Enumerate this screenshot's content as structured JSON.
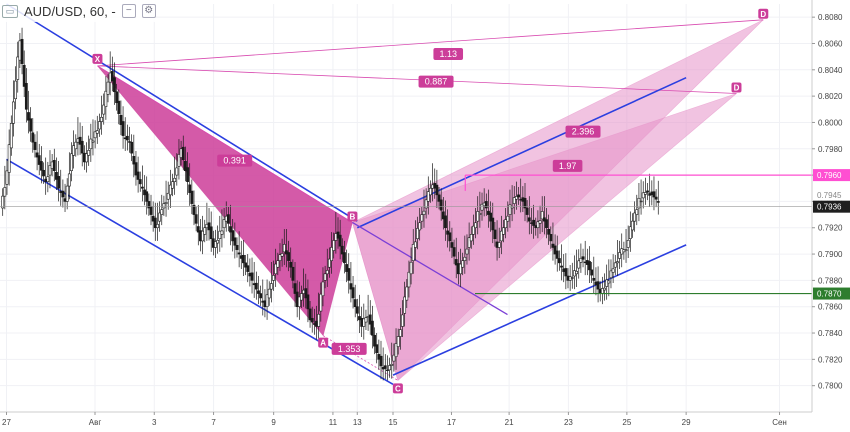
{
  "header": {
    "symbol_label": "AUD/USD, 60, -",
    "chart_icon": "chart-window-icon",
    "toggle_icons": [
      "minimize-square-icon",
      "settings-square-icon"
    ]
  },
  "colors": {
    "pattern_fill": "#cc3d99",
    "pattern_light": "#e691c8",
    "trend_line": "#2b3fe0",
    "fib_line": "#d84bb0",
    "level_pink": "#ff4fd2",
    "level_green": "#2e7d2e",
    "current_price_bg": "#1f1f1f",
    "candle": "#1a1a1a"
  },
  "chart_data": {
    "type": "candlestick",
    "symbol": "AUD/USD",
    "interval": "60",
    "ylim": [
      0.778,
      0.809
    ],
    "y_ticks": [
      "0.8080",
      "0.8060",
      "0.8040",
      "0.8020",
      "0.8000",
      "0.7980",
      "0.7960",
      "0.7940",
      "0.7920",
      "0.7900",
      "0.7880",
      "0.7860",
      "0.7840",
      "0.7820",
      "0.7800"
    ],
    "x_ticks": [
      "27",
      "Авг",
      "3",
      "7",
      "9",
      "11",
      "13",
      "15",
      "17",
      "21",
      "23",
      "25",
      "29",
      "Сен"
    ],
    "price_tags": [
      {
        "label": "0.7960",
        "style": "pink"
      },
      {
        "label": "0.7945",
        "style": "faint"
      },
      {
        "label": "0.7936",
        "style": "current"
      },
      {
        "label": "0.7870",
        "style": "green"
      }
    ],
    "price_path": [
      [
        0,
        0.7935
      ],
      [
        1,
        0.7962
      ],
      [
        2,
        0.8018
      ],
      [
        3,
        0.8062
      ],
      [
        4,
        0.801
      ],
      [
        5,
        0.7985
      ],
      [
        6,
        0.7968
      ],
      [
        7,
        0.7955
      ],
      [
        8,
        0.797
      ],
      [
        9,
        0.795
      ],
      [
        10,
        0.794
      ],
      [
        11,
        0.7975
      ],
      [
        12,
        0.799
      ],
      [
        13,
        0.797
      ],
      [
        14,
        0.7985
      ],
      [
        15,
        0.7995
      ],
      [
        16,
        0.8012
      ],
      [
        17,
        0.804
      ],
      [
        18,
        0.8015
      ],
      [
        19,
        0.799
      ],
      [
        20,
        0.7985
      ],
      [
        21,
        0.796
      ],
      [
        22,
        0.795
      ],
      [
        23,
        0.7935
      ],
      [
        24,
        0.792
      ],
      [
        25,
        0.7935
      ],
      [
        26,
        0.7945
      ],
      [
        27,
        0.796
      ],
      [
        28,
        0.798
      ],
      [
        29,
        0.7955
      ],
      [
        30,
        0.793
      ],
      [
        31,
        0.791
      ],
      [
        32,
        0.7925
      ],
      [
        33,
        0.7905
      ],
      [
        34,
        0.7915
      ],
      [
        35,
        0.793
      ],
      [
        36,
        0.791
      ],
      [
        37,
        0.79
      ],
      [
        38,
        0.789
      ],
      [
        39,
        0.788
      ],
      [
        40,
        0.787
      ],
      [
        41,
        0.786
      ],
      [
        42,
        0.788
      ],
      [
        43,
        0.7895
      ],
      [
        44,
        0.7905
      ],
      [
        45,
        0.789
      ],
      [
        46,
        0.786
      ],
      [
        47,
        0.7875
      ],
      [
        48,
        0.785
      ],
      [
        49,
        0.7845
      ],
      [
        50,
        0.788
      ],
      [
        51,
        0.7895
      ],
      [
        52,
        0.7918
      ],
      [
        53,
        0.79
      ],
      [
        54,
        0.788
      ],
      [
        55,
        0.786
      ],
      [
        56,
        0.7845
      ],
      [
        57,
        0.7855
      ],
      [
        58,
        0.783
      ],
      [
        59,
        0.7815
      ],
      [
        60,
        0.7812
      ],
      [
        61,
        0.7822
      ],
      [
        62,
        0.7845
      ],
      [
        63,
        0.7875
      ],
      [
        64,
        0.7905
      ],
      [
        65,
        0.7925
      ],
      [
        66,
        0.794
      ],
      [
        67,
        0.7955
      ],
      [
        68,
        0.794
      ],
      [
        69,
        0.792
      ],
      [
        70,
        0.7905
      ],
      [
        71,
        0.7885
      ],
      [
        72,
        0.79
      ],
      [
        73,
        0.7915
      ],
      [
        74,
        0.793
      ],
      [
        75,
        0.794
      ],
      [
        76,
        0.7925
      ],
      [
        77,
        0.7905
      ],
      [
        78,
        0.792
      ],
      [
        79,
        0.7935
      ],
      [
        80,
        0.7945
      ],
      [
        81,
        0.794
      ],
      [
        82,
        0.7925
      ],
      [
        83,
        0.792
      ],
      [
        84,
        0.793
      ],
      [
        85,
        0.7915
      ],
      [
        86,
        0.79
      ],
      [
        87,
        0.789
      ],
      [
        88,
        0.788
      ],
      [
        89,
        0.7885
      ],
      [
        90,
        0.7898
      ],
      [
        91,
        0.7892
      ],
      [
        92,
        0.788
      ],
      [
        93,
        0.787
      ],
      [
        94,
        0.7878
      ],
      [
        95,
        0.789
      ],
      [
        96,
        0.79
      ],
      [
        97,
        0.7905
      ],
      [
        98,
        0.7925
      ],
      [
        99,
        0.794
      ],
      [
        100,
        0.7948
      ],
      [
        101,
        0.7945
      ],
      [
        102,
        0.794
      ]
    ],
    "trend_lines": [
      {
        "name": "channel-upper-left",
        "from": [
          "27",
          0.809
        ],
        "to": [
          "13",
          0.7925
        ]
      },
      {
        "name": "channel-lower-left",
        "from": [
          "27",
          0.7972
        ],
        "to": [
          "15",
          0.7801
        ]
      },
      {
        "name": "channel-upper-right",
        "from": [
          "13",
          0.792
        ],
        "to": [
          "29",
          0.8034
        ]
      },
      {
        "name": "channel-lower-right",
        "from": [
          "15",
          0.7808
        ],
        "to": [
          "29",
          0.7907
        ]
      }
    ],
    "harmonic_pattern": {
      "points": [
        {
          "label": "X",
          "x_pos": 0.12,
          "price": 0.8043
        },
        {
          "label": "A",
          "x_pos": 0.398,
          "price": 0.7838
        },
        {
          "label": "B",
          "x_pos": 0.434,
          "price": 0.7924
        },
        {
          "label": "C",
          "x_pos": 0.49,
          "price": 0.7804
        },
        {
          "label": "D",
          "x_pos": 0.94,
          "price": 0.8078
        },
        {
          "label": "D",
          "x_pos": 0.907,
          "price": 0.8022
        }
      ],
      "ratios": [
        {
          "label": "0.391",
          "role": "XA-AB"
        },
        {
          "label": "1.353",
          "role": "AC"
        },
        {
          "label": "2.396",
          "role": "BD-outer"
        },
        {
          "label": "1.97",
          "role": "BD-inner"
        },
        {
          "label": "1.13",
          "role": "XD-outer"
        },
        {
          "label": "0.887",
          "role": "XD-inner"
        }
      ]
    },
    "horizontal_levels": [
      {
        "price": 0.796,
        "style": "pink",
        "label": "0.7960"
      },
      {
        "price": 0.787,
        "style": "green",
        "label": "0.7870"
      }
    ],
    "current_price": 0.7936
  }
}
